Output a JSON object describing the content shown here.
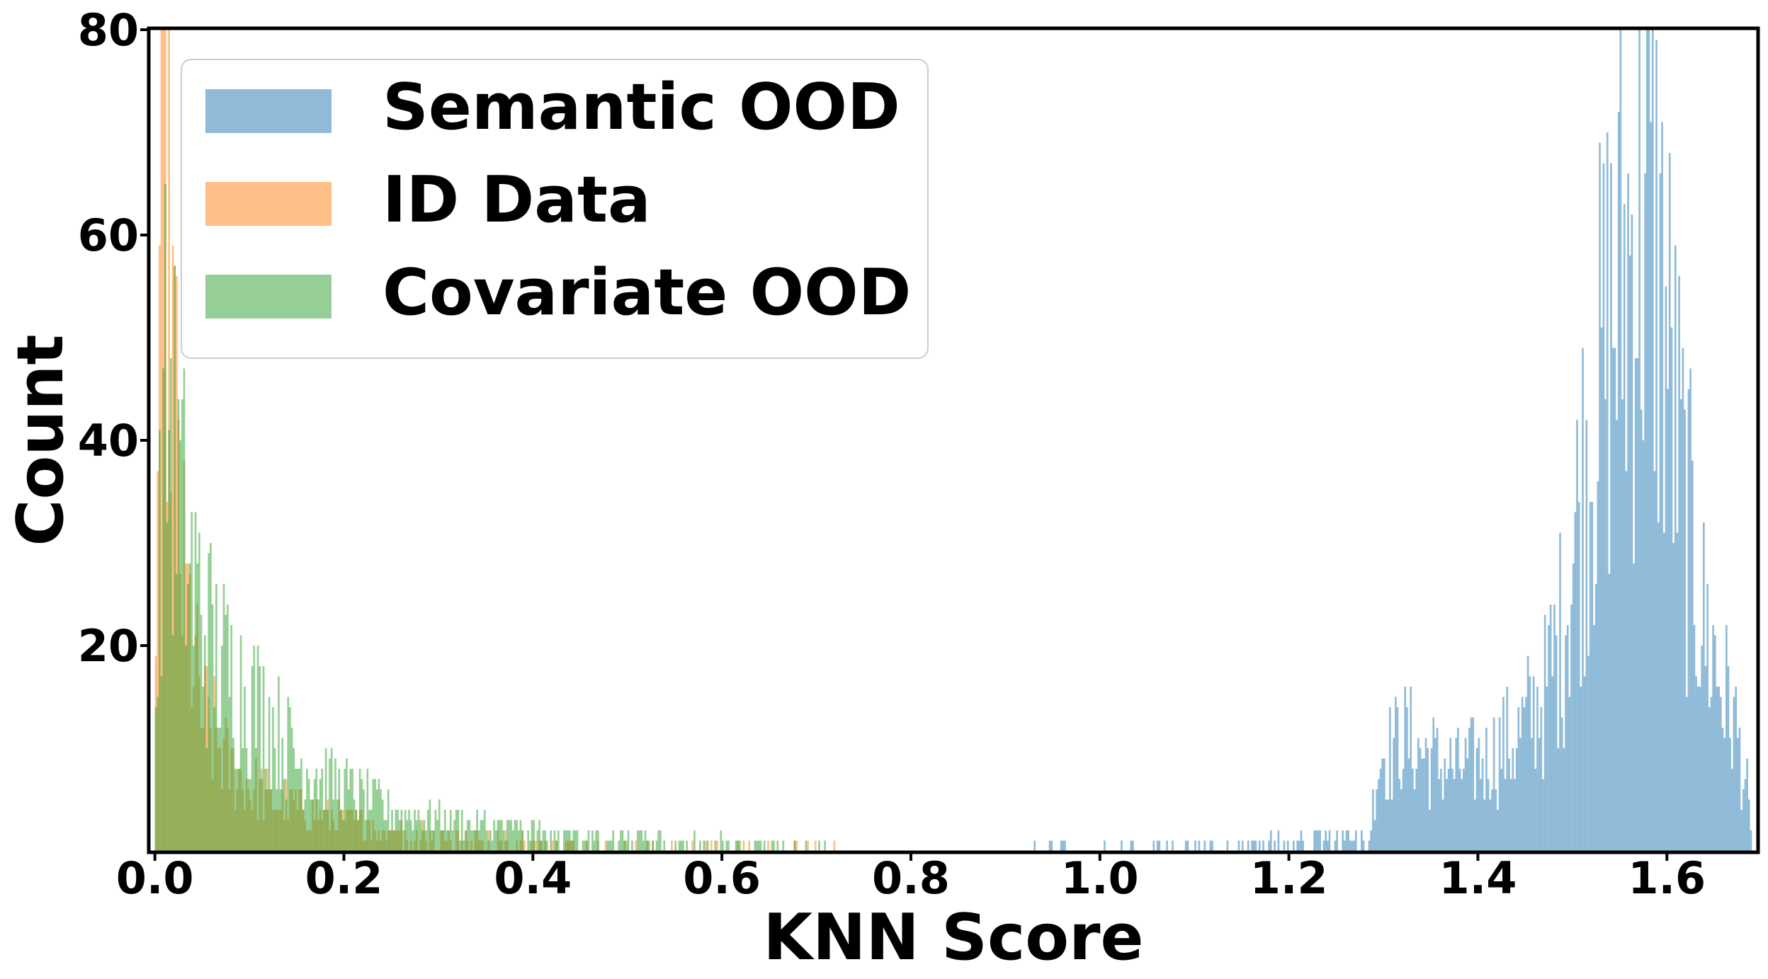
{
  "chart_data": {
    "type": "histogram",
    "xlabel": "KNN Score",
    "ylabel": "Count",
    "xlim": [
      -0.005,
      1.695
    ],
    "ylim": [
      0,
      80
    ],
    "xticks": [
      "0.0",
      "0.2",
      "0.4",
      "0.6",
      "0.8",
      "1.0",
      "1.2",
      "1.4",
      "1.6"
    ],
    "yticks": [
      "20",
      "40",
      "60",
      "80"
    ],
    "bin_width": 0.002,
    "legend": {
      "placement": "top-left",
      "entries": [
        "Semantic OOD",
        "ID Data",
        "Covariate OOD"
      ]
    },
    "series": [
      {
        "name": "Semantic OOD",
        "color": "#1f77b4",
        "opacity": 0.5,
        "order": 1,
        "x_range": [
          0.9,
          1.69
        ],
        "profile": [
          [
            0.9,
            0.4
          ],
          [
            1.0,
            0.6
          ],
          [
            1.1,
            0.9
          ],
          [
            1.2,
            1.3
          ],
          [
            1.285,
            1.5
          ],
          [
            1.295,
            9
          ],
          [
            1.32,
            11
          ],
          [
            1.35,
            9
          ],
          [
            1.38,
            8
          ],
          [
            1.41,
            9
          ],
          [
            1.44,
            11
          ],
          [
            1.47,
            15
          ],
          [
            1.49,
            22
          ],
          [
            1.51,
            35
          ],
          [
            1.53,
            46
          ],
          [
            1.55,
            55
          ],
          [
            1.57,
            61
          ],
          [
            1.585,
            62
          ],
          [
            1.6,
            50
          ],
          [
            1.62,
            33
          ],
          [
            1.64,
            22
          ],
          [
            1.66,
            16
          ],
          [
            1.675,
            11
          ],
          [
            1.685,
            6
          ],
          [
            1.69,
            0
          ]
        ],
        "peak_max": 80
      },
      {
        "name": "ID Data",
        "color": "#ff7f0e",
        "opacity": 0.5,
        "order": 2,
        "x_range": [
          0.0,
          0.72
        ],
        "profile": [
          [
            0.0,
            5
          ],
          [
            0.005,
            60
          ],
          [
            0.01,
            80
          ],
          [
            0.015,
            70
          ],
          [
            0.02,
            45
          ],
          [
            0.03,
            26
          ],
          [
            0.05,
            13
          ],
          [
            0.08,
            8
          ],
          [
            0.12,
            5
          ],
          [
            0.2,
            3
          ],
          [
            0.3,
            1.5
          ],
          [
            0.45,
            0.8
          ],
          [
            0.6,
            0.4
          ],
          [
            0.72,
            0.2
          ]
        ],
        "peak_max": 80
      },
      {
        "name": "Covariate OOD",
        "color": "#2ca02c",
        "opacity": 0.5,
        "order": 3,
        "x_range": [
          0.0,
          0.72
        ],
        "profile": [
          [
            0.0,
            10
          ],
          [
            0.008,
            40
          ],
          [
            0.015,
            45
          ],
          [
            0.025,
            35
          ],
          [
            0.04,
            26
          ],
          [
            0.06,
            20
          ],
          [
            0.09,
            16
          ],
          [
            0.12,
            13
          ],
          [
            0.15,
            9
          ],
          [
            0.2,
            6
          ],
          [
            0.25,
            4
          ],
          [
            0.3,
            3
          ],
          [
            0.4,
            2
          ],
          [
            0.5,
            1.5
          ],
          [
            0.6,
            1
          ],
          [
            0.72,
            0.5
          ]
        ],
        "peak_max": 65
      }
    ]
  }
}
